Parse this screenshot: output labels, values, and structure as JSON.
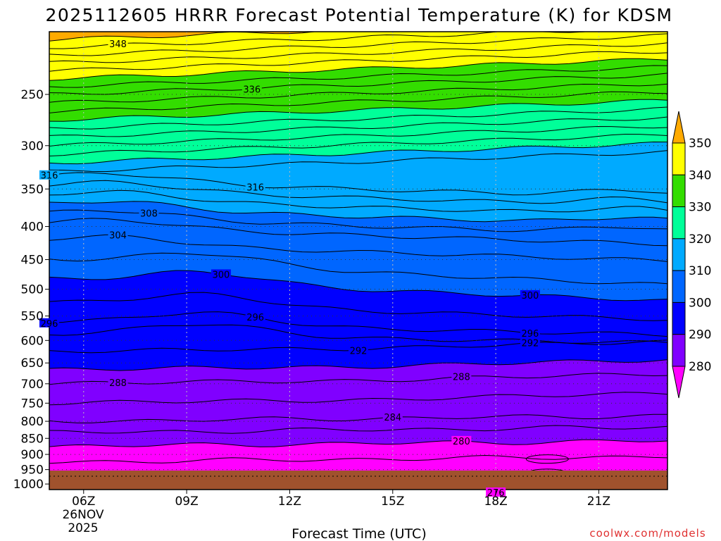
{
  "chart_data": {
    "type": "contour",
    "title": "2025112605 HRRR Forecast Potential Temperature (K) for KDSM",
    "xlabel": "Forecast Time (UTC)",
    "ylabel": "",
    "x_ticks": [
      "06Z",
      "09Z",
      "12Z",
      "15Z",
      "18Z",
      "21Z"
    ],
    "x_first_tick_date": [
      "26NOV",
      "2025"
    ],
    "y_ticks": [
      250,
      300,
      350,
      400,
      450,
      500,
      550,
      600,
      650,
      700,
      750,
      800,
      850,
      900,
      950,
      1000
    ],
    "y_range_hpa": [
      200,
      1020
    ],
    "x_range_hours": [
      5.0,
      23.0
    ],
    "y_scale": "log",
    "y_axis": "pressure, inverted",
    "grid": "dotted",
    "colorbar": {
      "levels": [
        280,
        290,
        300,
        310,
        320,
        330,
        340,
        350
      ],
      "colors": [
        "#ff00ff",
        "#8000ff",
        "#0000ff",
        "#0066ff",
        "#00aaff",
        "#00ff99",
        "#33dd00",
        "#ffff00",
        "#ffaa00"
      ],
      "labels": [
        "280",
        "290",
        "300",
        "310",
        "320",
        "330",
        "340",
        "350"
      ]
    },
    "theta_profile": {
      "p": [
        1000,
        950,
        900,
        850,
        800,
        750,
        700,
        650,
        600,
        550,
        500,
        450,
        400,
        350,
        300,
        250,
        200
      ],
      "theta_K": [
        276,
        277,
        279,
        281,
        284,
        286,
        288,
        291,
        293,
        297,
        299,
        302,
        306,
        314,
        324,
        336,
        352
      ]
    },
    "contour_labels": [
      "348",
      "336",
      "316",
      "316",
      "308",
      "304",
      "300",
      "296",
      "296",
      "292",
      "300",
      "296",
      "292",
      "288",
      "288",
      "284",
      "280",
      "276"
    ],
    "ground_color": "#a0522d",
    "credit": "coolwx.com/models"
  }
}
